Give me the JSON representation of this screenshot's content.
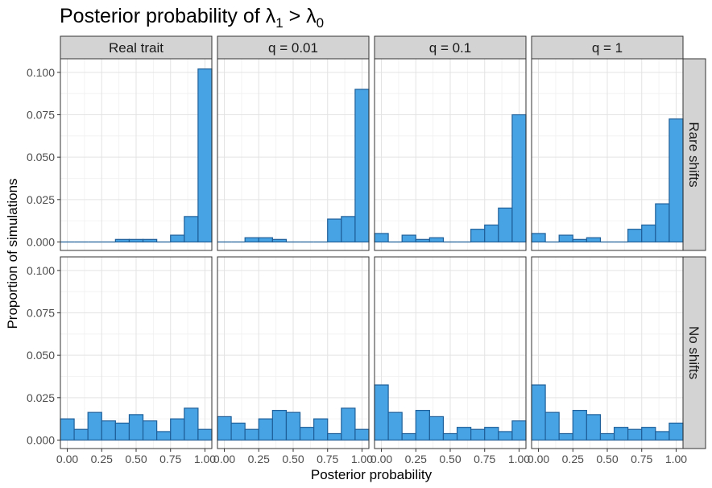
{
  "title": {
    "prefix": "Posterior probability of ",
    "lambda": "λ",
    "sub1": "1",
    "mid": " > ",
    "sub0": "0"
  },
  "chart_data": {
    "type": "bar",
    "subtype": "histogram-facet-grid",
    "xlabel": "Posterior probability",
    "ylabel": "Proportion of simulations",
    "xlim": [
      -0.05,
      1.05
    ],
    "ylim": [
      -0.005,
      0.108
    ],
    "xticks": [
      0.0,
      0.25,
      0.5,
      0.75,
      1.0
    ],
    "xtick_labels": [
      "0.00",
      "0.25",
      "0.50",
      "0.75",
      "1.00"
    ],
    "yticks": [
      0.0,
      0.025,
      0.05,
      0.075,
      0.1
    ],
    "ytick_labels": [
      "0.000",
      "0.025",
      "0.050",
      "0.075",
      "0.100"
    ],
    "bin_width": 0.1,
    "bin_centers": [
      0.0,
      0.1,
      0.2,
      0.3,
      0.4,
      0.5,
      0.6,
      0.7,
      0.8,
      0.9,
      1.0
    ],
    "bar_color": "#47a3e3",
    "bar_border": "#1f5f99",
    "grid": true,
    "columns": [
      "Real trait",
      "q = 0.01",
      "q = 0.1",
      "q = 1"
    ],
    "rows": [
      "Rare shifts",
      "No shifts"
    ],
    "panels": [
      [
        {
          "values": [
            0.0,
            0.0,
            0.0,
            0.0,
            0.0015,
            0.0015,
            0.0015,
            0.0,
            0.004,
            0.015,
            0.102
          ]
        },
        {
          "values": [
            0.0,
            0.0,
            0.0025,
            0.0025,
            0.0015,
            0.0,
            0.0,
            0.0,
            0.0135,
            0.015,
            0.09
          ]
        },
        {
          "values": [
            0.005,
            0.0,
            0.004,
            0.0015,
            0.0025,
            0.0,
            0.0,
            0.0075,
            0.01,
            0.02,
            0.075
          ]
        },
        {
          "values": [
            0.005,
            0.0,
            0.004,
            0.0015,
            0.0025,
            0.0,
            0.0,
            0.0075,
            0.01,
            0.0225,
            0.0725
          ]
        }
      ],
      [
        {
          "values": [
            0.0125,
            0.0063,
            0.0163,
            0.0113,
            0.01,
            0.015,
            0.0113,
            0.005,
            0.0125,
            0.0188,
            0.0063
          ]
        },
        {
          "values": [
            0.0138,
            0.01,
            0.0063,
            0.0125,
            0.0175,
            0.0163,
            0.0075,
            0.0125,
            0.0038,
            0.0188,
            0.0063
          ]
        },
        {
          "values": [
            0.0325,
            0.0163,
            0.0038,
            0.0175,
            0.0138,
            0.0038,
            0.0075,
            0.0063,
            0.0075,
            0.005,
            0.0113
          ]
        },
        {
          "values": [
            0.0325,
            0.0163,
            0.0038,
            0.0175,
            0.015,
            0.0038,
            0.0075,
            0.0063,
            0.0075,
            0.005,
            0.01
          ]
        }
      ]
    ]
  }
}
